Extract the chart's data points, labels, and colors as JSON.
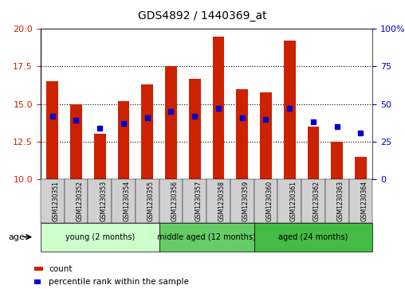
{
  "title": "GDS4892 / 1440369_at",
  "samples": [
    "GSM1230351",
    "GSM1230352",
    "GSM1230353",
    "GSM1230354",
    "GSM1230355",
    "GSM1230356",
    "GSM1230357",
    "GSM1230358",
    "GSM1230359",
    "GSM1230360",
    "GSM1230361",
    "GSM1230362",
    "GSM1230363",
    "GSM1230364"
  ],
  "count_values": [
    16.5,
    15.0,
    13.0,
    15.2,
    16.3,
    17.5,
    16.7,
    19.5,
    16.0,
    15.8,
    19.2,
    13.5,
    12.5,
    11.5
  ],
  "percentile_values": [
    14.2,
    13.9,
    13.4,
    13.7,
    14.1,
    14.5,
    14.2,
    14.7,
    14.1,
    14.0,
    14.7,
    13.8,
    13.5,
    13.1
  ],
  "ymin": 10,
  "ymax": 20,
  "pct_min": 0,
  "pct_max": 100,
  "yticks_left": [
    10,
    12.5,
    15,
    17.5,
    20
  ],
  "yticks_right": [
    0,
    25,
    50,
    75,
    100
  ],
  "bar_color": "#cc2200",
  "pct_color": "#0000cc",
  "groups": [
    {
      "label": "young (2 months)",
      "start": 0,
      "end": 5,
      "color": "#aaffaa"
    },
    {
      "label": "middle aged (12 months)",
      "start": 5,
      "end": 9,
      "color": "#55cc55"
    },
    {
      "label": "aged (24 months)",
      "start": 9,
      "end": 14,
      "color": "#33bb33"
    }
  ],
  "grid_color": "#000000",
  "bg_color": "#ffffff",
  "tick_label_color_left": "#cc2200",
  "tick_label_color_right": "#0000cc",
  "bar_width": 0.5,
  "age_label": "age",
  "legend_count": "count",
  "legend_pct": "percentile rank within the sample"
}
